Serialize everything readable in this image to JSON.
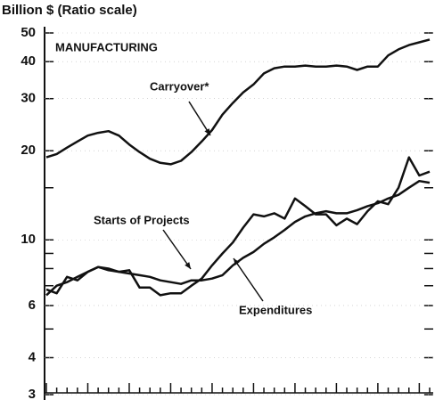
{
  "chart_data": {
    "type": "line",
    "title": "Billion $ (Ratio scale)",
    "subtitle": "MANUFACTURING",
    "categories": [
      null,
      null,
      null,
      null,
      null,
      null,
      null,
      null,
      null,
      null,
      null,
      null,
      null,
      null,
      null,
      null,
      null,
      null,
      null,
      null,
      null,
      null,
      null,
      null,
      null,
      null,
      null,
      null,
      null,
      null,
      null,
      null,
      null,
      null,
      null,
      null,
      null,
      null
    ],
    "series": [
      {
        "name": "Carryover*",
        "color": "#111",
        "values": [
          19,
          19.5,
          20.5,
          21.5,
          22.5,
          23,
          23.3,
          22.5,
          21,
          19.8,
          18.8,
          18.2,
          18,
          18.5,
          19.8,
          21.5,
          23.5,
          26.5,
          29,
          31.5,
          33.5,
          36.5,
          38,
          38.5,
          38.5,
          38.8,
          38.5,
          38.5,
          38.8,
          38.5,
          37.5,
          38.5,
          38.5,
          42,
          44,
          45.5,
          46.5,
          47.5
        ]
      },
      {
        "name": "Starts of Projects",
        "color": "#111",
        "values": [
          6.8,
          6.6,
          7.5,
          7.3,
          7.8,
          8.1,
          8,
          7.8,
          7.9,
          6.9,
          6.9,
          6.5,
          6.6,
          6.6,
          7,
          7.4,
          8.2,
          9,
          9.8,
          11,
          12.2,
          12,
          12.3,
          11.8,
          13.8,
          13,
          12.2,
          12.2,
          11.2,
          11.8,
          11.3,
          12.5,
          13.5,
          13.2,
          15,
          19,
          16.5,
          17
        ]
      },
      {
        "name": "Expenditures",
        "color": "#111",
        "values": [
          6.5,
          7,
          7.2,
          7.5,
          7.8,
          8.1,
          7.9,
          7.8,
          7.7,
          7.6,
          7.5,
          7.3,
          7.2,
          7.1,
          7.3,
          7.3,
          7.4,
          7.6,
          8.2,
          8.7,
          9.1,
          9.7,
          10.2,
          10.8,
          11.5,
          12,
          12.3,
          12.5,
          12.3,
          12.3,
          12.6,
          13,
          13.3,
          13.8,
          14.2,
          15,
          15.8,
          15.6
        ]
      }
    ],
    "ylim": [
      3,
      50
    ],
    "yticks": [
      3,
      4,
      6,
      10,
      20,
      30,
      40,
      50
    ],
    "minor_yticks": [
      5,
      7,
      8,
      9,
      15
    ],
    "log_scale": true,
    "grid": true
  }
}
